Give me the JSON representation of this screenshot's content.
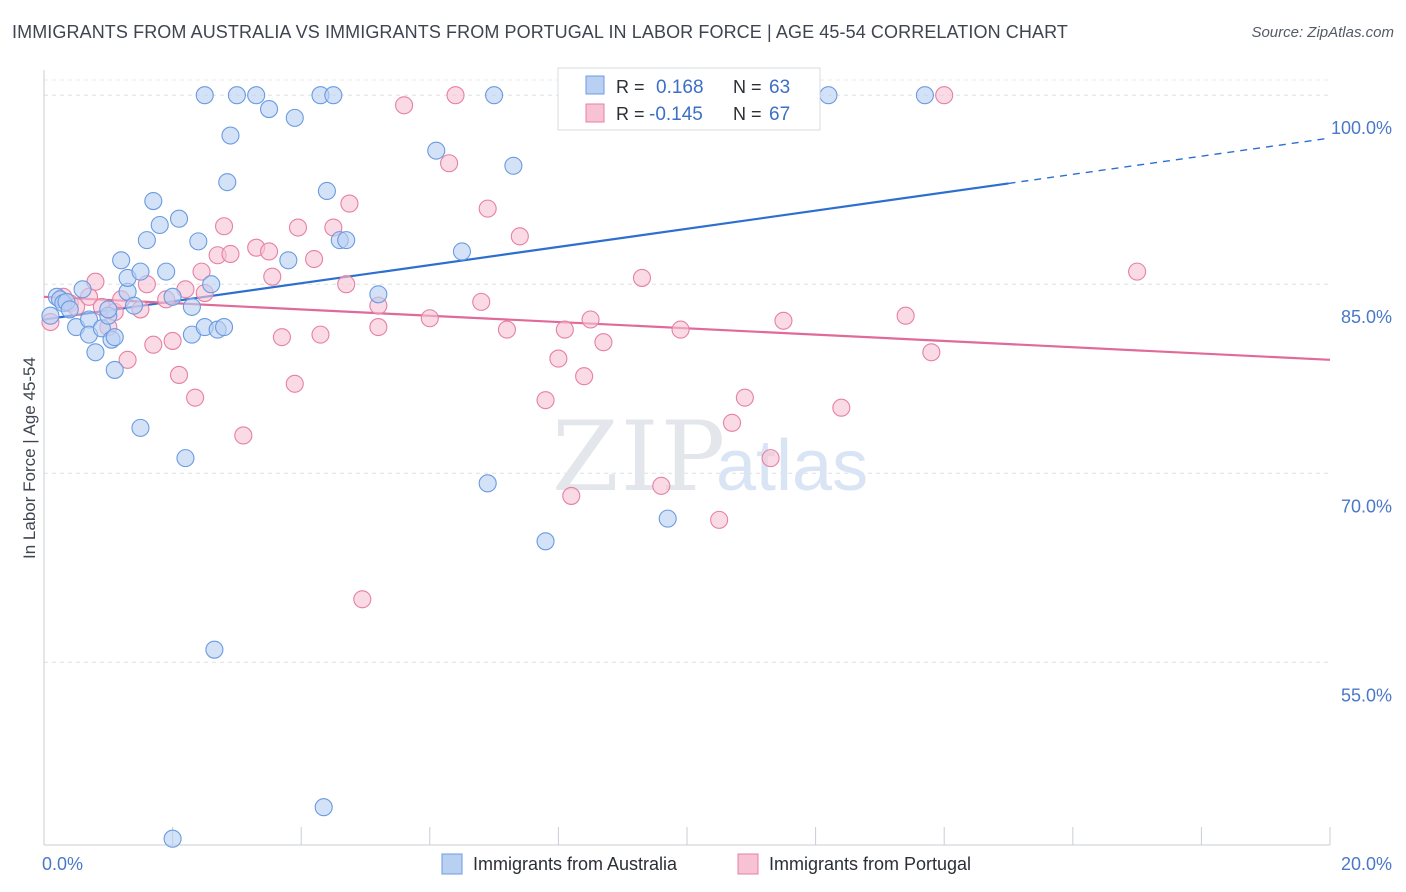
{
  "title": "IMMIGRANTS FROM AUSTRALIA VS IMMIGRANTS FROM PORTUGAL IN LABOR FORCE | AGE 45-54 CORRELATION CHART",
  "source": "Source: ZipAtlas.com",
  "watermark": {
    "zip": "ZIP",
    "atlas": "atlas"
  },
  "colors": {
    "australia": "#6a9be0",
    "australia_fill": "#b9d0f3",
    "portugal": "#e680a5",
    "portugal_fill": "#f7c3d4",
    "blue_line": "#2d6fd0",
    "pink_line": "#e06a98",
    "tick": "#4a78c8"
  },
  "legend_box": {
    "rows": [
      {
        "r_label": "R =",
        "r_value": "0.168",
        "n_label": "N =",
        "n_value": "63"
      },
      {
        "r_label": "R =",
        "r_value": "-0.145",
        "n_label": "N =",
        "n_value": "67"
      }
    ]
  },
  "bottom_legend": {
    "australia": "Immigrants from Australia",
    "portugal": "Immigrants from Portugal"
  },
  "chart_data": {
    "type": "scatter",
    "xlabel": "",
    "ylabel": "In Labor Force | Age 45-54",
    "x_tick_labels": [
      "0.0%",
      "20.0%"
    ],
    "y_tick_labels": [
      "100.0%",
      "85.0%",
      "70.0%",
      "55.0%"
    ],
    "y_ticks": [
      100,
      85,
      70,
      55
    ],
    "xlim": [
      0,
      20
    ],
    "ylim": [
      40.5,
      102
    ],
    "grid": true,
    "legend_placement": "bottom",
    "series": [
      {
        "name": "Immigrants from Australia",
        "points": [
          [
            0.1,
            82.5
          ],
          [
            0.2,
            84.0
          ],
          [
            0.25,
            83.8
          ],
          [
            0.3,
            83.5
          ],
          [
            0.35,
            83.6
          ],
          [
            0.4,
            83.0
          ],
          [
            0.5,
            81.6
          ],
          [
            0.6,
            84.6
          ],
          [
            0.7,
            82.2
          ],
          [
            0.7,
            81.0
          ],
          [
            0.8,
            79.6
          ],
          [
            0.9,
            81.5
          ],
          [
            1.0,
            82.5
          ],
          [
            1.0,
            83.0
          ],
          [
            1.05,
            80.6
          ],
          [
            1.1,
            80.8
          ],
          [
            1.1,
            78.2
          ],
          [
            1.2,
            86.9
          ],
          [
            1.3,
            84.4
          ],
          [
            1.3,
            85.5
          ],
          [
            1.4,
            83.3
          ],
          [
            1.5,
            86.0
          ],
          [
            1.5,
            73.6
          ],
          [
            1.6,
            88.5
          ],
          [
            1.7,
            91.6
          ],
          [
            1.8,
            89.7
          ],
          [
            1.9,
            86.0
          ],
          [
            2.0,
            84.0
          ],
          [
            2.0,
            41.0
          ],
          [
            2.1,
            90.2
          ],
          [
            2.2,
            71.2
          ],
          [
            2.3,
            83.2
          ],
          [
            2.3,
            81.0
          ],
          [
            2.4,
            88.4
          ],
          [
            2.5,
            81.6
          ],
          [
            2.5,
            100.0
          ],
          [
            2.6,
            85.0
          ],
          [
            2.65,
            56.0
          ],
          [
            2.7,
            81.4
          ],
          [
            2.8,
            81.6
          ],
          [
            2.85,
            93.1
          ],
          [
            2.9,
            96.8
          ],
          [
            3.0,
            100.0
          ],
          [
            3.3,
            100.0
          ],
          [
            3.5,
            98.9
          ],
          [
            3.8,
            86.9
          ],
          [
            3.9,
            98.2
          ],
          [
            4.3,
            100.0
          ],
          [
            4.35,
            43.5
          ],
          [
            4.4,
            92.4
          ],
          [
            4.5,
            100.0
          ],
          [
            4.6,
            88.5
          ],
          [
            4.7,
            88.5
          ],
          [
            5.2,
            84.2
          ],
          [
            6.1,
            95.6
          ],
          [
            6.5,
            87.6
          ],
          [
            6.9,
            69.2
          ],
          [
            7.0,
            100.0
          ],
          [
            7.3,
            94.4
          ],
          [
            7.8,
            64.6
          ],
          [
            9.7,
            66.4
          ],
          [
            12.2,
            100.0
          ],
          [
            13.7,
            100.0
          ]
        ]
      },
      {
        "name": "Immigrants from Portugal",
        "points": [
          [
            0.1,
            82.0
          ],
          [
            0.3,
            84.0
          ],
          [
            0.4,
            83.5
          ],
          [
            0.5,
            83.2
          ],
          [
            0.7,
            84.0
          ],
          [
            0.8,
            85.2
          ],
          [
            0.9,
            83.2
          ],
          [
            1.0,
            81.6
          ],
          [
            1.1,
            82.8
          ],
          [
            1.2,
            83.8
          ],
          [
            1.3,
            79.0
          ],
          [
            1.5,
            83.0
          ],
          [
            1.6,
            85.0
          ],
          [
            1.7,
            80.2
          ],
          [
            1.9,
            83.8
          ],
          [
            2.0,
            80.5
          ],
          [
            2.1,
            77.8
          ],
          [
            2.2,
            84.6
          ],
          [
            2.35,
            76.0
          ],
          [
            2.45,
            86.0
          ],
          [
            2.5,
            84.3
          ],
          [
            2.7,
            87.3
          ],
          [
            2.8,
            89.6
          ],
          [
            2.9,
            87.4
          ],
          [
            3.1,
            73.0
          ],
          [
            3.3,
            87.9
          ],
          [
            3.5,
            87.6
          ],
          [
            3.55,
            85.6
          ],
          [
            3.7,
            80.8
          ],
          [
            3.9,
            77.1
          ],
          [
            3.95,
            89.5
          ],
          [
            4.2,
            87.0
          ],
          [
            4.3,
            81.0
          ],
          [
            4.5,
            89.5
          ],
          [
            4.7,
            85.0
          ],
          [
            4.75,
            91.4
          ],
          [
            4.95,
            60.0
          ],
          [
            5.2,
            81.6
          ],
          [
            5.2,
            83.3
          ],
          [
            5.6,
            99.2
          ],
          [
            6.0,
            82.3
          ],
          [
            6.3,
            94.6
          ],
          [
            6.4,
            100.0
          ],
          [
            6.8,
            83.6
          ],
          [
            6.9,
            91.0
          ],
          [
            7.2,
            81.4
          ],
          [
            7.4,
            88.8
          ],
          [
            7.8,
            75.8
          ],
          [
            8.0,
            79.1
          ],
          [
            8.1,
            81.4
          ],
          [
            8.2,
            68.2
          ],
          [
            8.4,
            77.7
          ],
          [
            8.5,
            82.2
          ],
          [
            8.7,
            80.4
          ],
          [
            9.3,
            85.5
          ],
          [
            9.6,
            69.0
          ],
          [
            9.9,
            81.4
          ],
          [
            10.5,
            66.3
          ],
          [
            10.7,
            74.0
          ],
          [
            10.9,
            76.0
          ],
          [
            11.3,
            71.2
          ],
          [
            11.5,
            82.1
          ],
          [
            12.4,
            75.2
          ],
          [
            13.4,
            82.5
          ],
          [
            13.8,
            79.6
          ],
          [
            14.0,
            100.0
          ],
          [
            17.0,
            86.0
          ]
        ]
      }
    ],
    "trend_lines": [
      {
        "series": "Immigrants from Australia",
        "x_start": 0,
        "y_start": 82.2,
        "x_end": 15.0,
        "y_end": 93.0,
        "dashed_to_x": 20.0,
        "dashed_to_y": 96.6
      },
      {
        "series": "Immigrants from Portugal",
        "x_start": 0,
        "y_start": 84.0,
        "x_end": 20.0,
        "y_end": 79.0
      }
    ]
  }
}
